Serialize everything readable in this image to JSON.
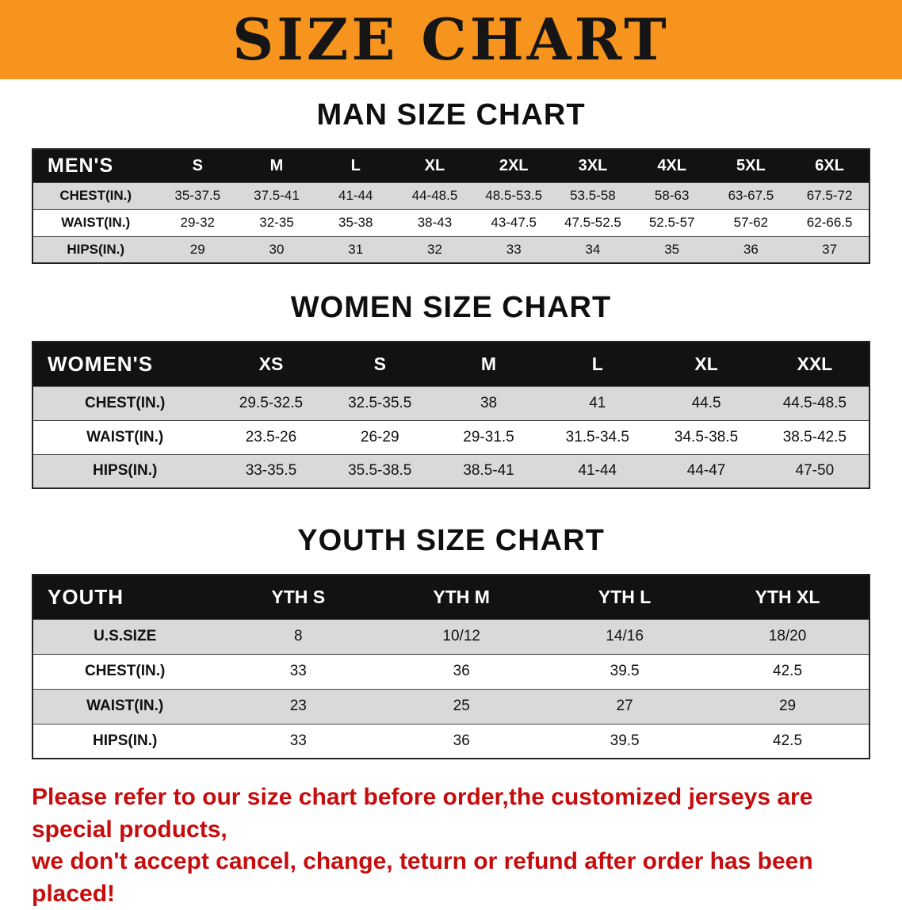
{
  "banner": {
    "title": "SIZE CHART",
    "bg_color": "#F7941D",
    "text_color": "#151515"
  },
  "sections": [
    {
      "heading": "MAN SIZE CHART",
      "table": {
        "header": [
          "MEN'S",
          "S",
          "M",
          "L",
          "XL",
          "2XL",
          "3XL",
          "4XL",
          "5XL",
          "6XL"
        ],
        "rows": [
          {
            "label": "CHEST(IN.)",
            "values": [
              "35-37.5",
              "37.5-41",
              "41-44",
              "44-48.5",
              "48.5-53.5",
              "53.5-58",
              "58-63",
              "63-67.5",
              "67.5-72"
            ]
          },
          {
            "label": "WAIST(IN.)",
            "values": [
              "29-32",
              "32-35",
              "35-38",
              "38-43",
              "43-47.5",
              "47.5-52.5",
              "52.5-57",
              "57-62",
              "62-66.5"
            ]
          },
          {
            "label": "HIPS(IN.)",
            "values": [
              "29",
              "30",
              "31",
              "32",
              "33",
              "34",
              "35",
              "36",
              "37"
            ]
          }
        ]
      }
    },
    {
      "heading": "WOMEN SIZE CHART",
      "table": {
        "header": [
          "WOMEN'S",
          "XS",
          "S",
          "M",
          "L",
          "XL",
          "XXL"
        ],
        "rows": [
          {
            "label": "CHEST(IN.)",
            "values": [
              "29.5-32.5",
              "32.5-35.5",
              "38",
              "41",
              "44.5",
              "44.5-48.5"
            ]
          },
          {
            "label": "WAIST(IN.)",
            "values": [
              "23.5-26",
              "26-29",
              "29-31.5",
              "31.5-34.5",
              "34.5-38.5",
              "38.5-42.5"
            ]
          },
          {
            "label": "HIPS(IN.)",
            "values": [
              "33-35.5",
              "35.5-38.5",
              "38.5-41",
              "41-44",
              "44-47",
              "47-50"
            ]
          }
        ]
      }
    },
    {
      "heading": "YOUTH SIZE CHART",
      "table": {
        "header": [
          "YOUTH",
          "YTH S",
          "YTH M",
          "YTH L",
          "YTH XL"
        ],
        "rows": [
          {
            "label": "U.S.SIZE",
            "values": [
              "8",
              "10/12",
              "14/16",
              "18/20"
            ]
          },
          {
            "label": "CHEST(IN.)",
            "values": [
              "33",
              "36",
              "39.5",
              "42.5"
            ]
          },
          {
            "label": "WAIST(IN.)",
            "values": [
              "23",
              "25",
              "27",
              "29"
            ]
          },
          {
            "label": "HIPS(IN.)",
            "values": [
              "33",
              "36",
              "39.5",
              "42.5"
            ]
          }
        ]
      }
    }
  ],
  "disclaimer": {
    "line1": "Please refer to our size chart before order,the customized jerseys are special products,",
    "line2": "we don't accept cancel, change, teturn or refund after order has been placed!",
    "color": "#c60c0c"
  }
}
